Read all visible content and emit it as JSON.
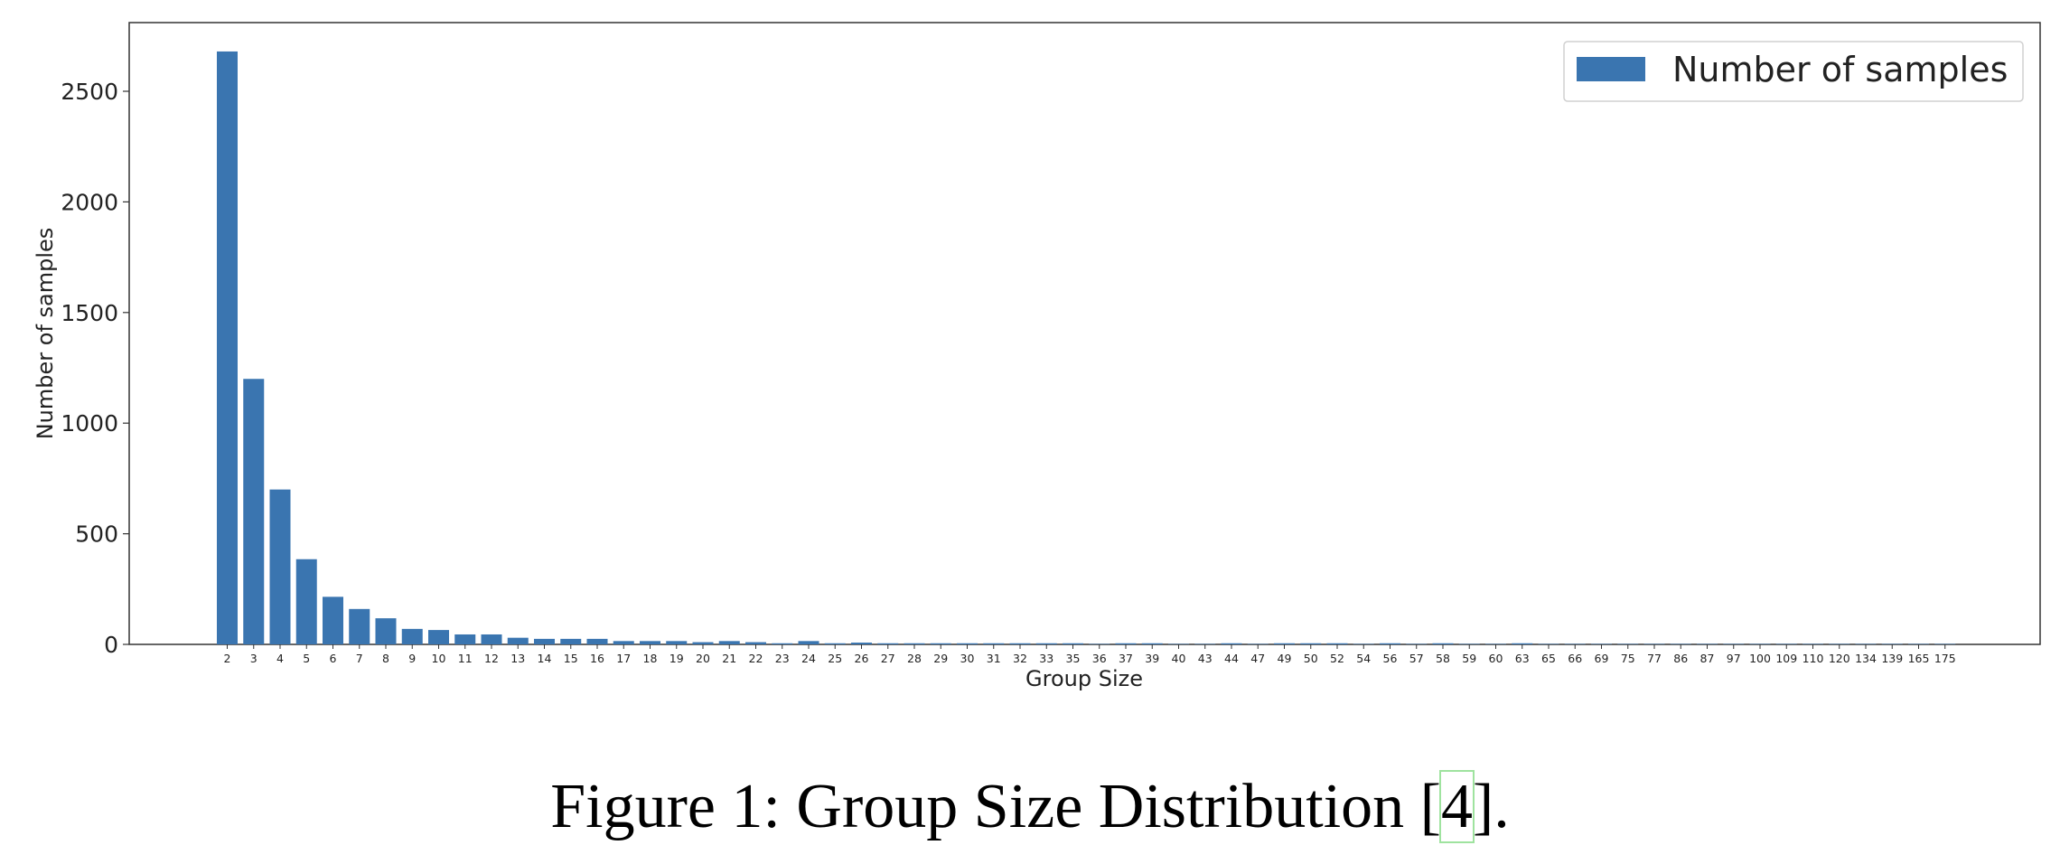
{
  "chart_data": {
    "type": "bar",
    "xlabel": "Group Size",
    "ylabel": "Number of samples",
    "ylim": [
      0,
      2800
    ],
    "yticks": [
      0,
      500,
      1000,
      1500,
      2000,
      2500
    ],
    "grid": false,
    "legend": {
      "placement": "top-right",
      "entries": [
        "Number of samples"
      ]
    },
    "bar_color": "#3a75b0",
    "categories": [
      "2",
      "3",
      "4",
      "5",
      "6",
      "7",
      "8",
      "9",
      "10",
      "11",
      "12",
      "13",
      "14",
      "15",
      "16",
      "17",
      "18",
      "19",
      "20",
      "21",
      "22",
      "23",
      "24",
      "25",
      "26",
      "27",
      "28",
      "29",
      "30",
      "31",
      "32",
      "33",
      "35",
      "36",
      "37",
      "39",
      "40",
      "43",
      "44",
      "47",
      "49",
      "50",
      "52",
      "54",
      "56",
      "57",
      "58",
      "59",
      "60",
      "63",
      "65",
      "66",
      "69",
      "75",
      "77",
      "86",
      "87",
      "97",
      "100",
      "109",
      "110",
      "120",
      "134",
      "139",
      "165",
      "175"
    ],
    "series": [
      {
        "name": "Number of samples",
        "values": [
          2680,
          1200,
          700,
          385,
          215,
          160,
          118,
          70,
          65,
          45,
          45,
          30,
          25,
          25,
          25,
          15,
          15,
          15,
          10,
          15,
          10,
          5,
          15,
          5,
          8,
          5,
          5,
          5,
          5,
          5,
          5,
          5,
          5,
          2,
          5,
          5,
          2,
          2,
          5,
          2,
          5,
          5,
          5,
          2,
          5,
          2,
          5,
          2,
          2,
          5,
          2,
          2,
          2,
          2,
          2,
          2,
          2,
          2,
          2,
          2,
          2,
          2,
          2,
          2,
          2,
          2
        ]
      }
    ]
  },
  "caption": {
    "prefix": "Figure 1: Group Size Distribution [",
    "citation": "4",
    "suffix": "]."
  }
}
